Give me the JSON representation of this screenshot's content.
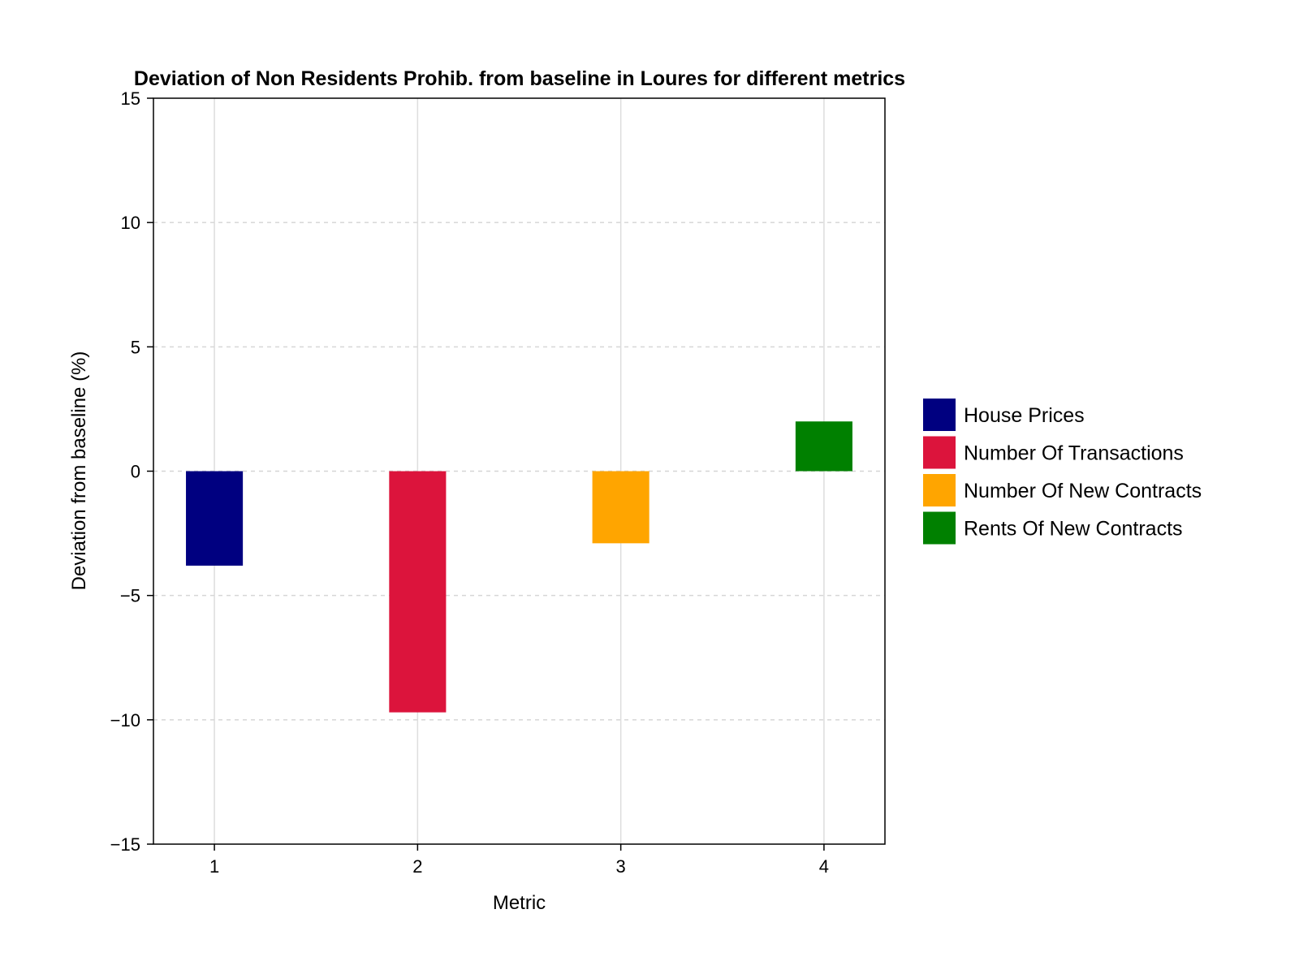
{
  "chart_data": {
    "type": "bar",
    "title": "Deviation of Non Residents Prohib. from baseline in Loures for different metrics",
    "xlabel": "Metric",
    "ylabel": "Deviation from baseline (%)",
    "x": [
      1,
      2,
      3,
      4
    ],
    "x_tick_labels": [
      "1",
      "2",
      "3",
      "4"
    ],
    "xlim": [
      0.7,
      4.3
    ],
    "ylim": [
      -15,
      15
    ],
    "y_ticks": [
      -15,
      -10,
      -5,
      0,
      5,
      10,
      15
    ],
    "y_tick_labels": [
      "−15",
      "−10",
      "−5",
      "0",
      "5",
      "10",
      "15"
    ],
    "grid": true,
    "legend_position": "right",
    "series": [
      {
        "name": "House Prices",
        "x": 1,
        "value": -3.8,
        "color": "#000080"
      },
      {
        "name": "Number Of Transactions",
        "x": 2,
        "value": -9.7,
        "color": "#DC143C"
      },
      {
        "name": "Number Of New Contracts",
        "x": 3,
        "value": -2.9,
        "color": "#FFA500"
      },
      {
        "name": "Rents Of New Contracts",
        "x": 4,
        "value": 2.0,
        "color": "#008000"
      }
    ]
  }
}
